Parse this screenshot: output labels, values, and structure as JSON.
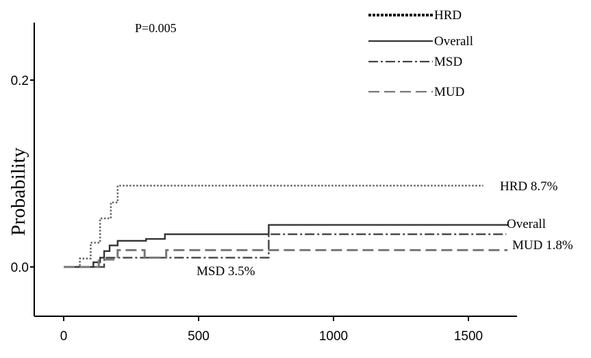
{
  "chart_data": {
    "type": "line",
    "title": "",
    "annotation": "P=0.005",
    "xlabel": "",
    "ylabel": "Probability",
    "xlim": [
      -25,
      1720
    ],
    "ylim": [
      -0.05,
      0.26
    ],
    "xticks": [
      0,
      500,
      1000,
      1500
    ],
    "yticks": [
      0.0,
      0.2
    ],
    "ytick_labels": [
      "0.0",
      "0.2"
    ],
    "grid": false,
    "legend_position": "top-right",
    "series": [
      {
        "name": "HRD",
        "style": "dotted",
        "color": "#666666",
        "end_label": "HRD 8.7%",
        "points": [
          [
            0,
            0
          ],
          [
            60,
            0
          ],
          [
            60,
            0.009
          ],
          [
            100,
            0.009
          ],
          [
            100,
            0.026
          ],
          [
            135,
            0.026
          ],
          [
            135,
            0.052
          ],
          [
            175,
            0.052
          ],
          [
            175,
            0.069
          ],
          [
            200,
            0.069
          ],
          [
            200,
            0.087
          ],
          [
            1555,
            0.087
          ]
        ]
      },
      {
        "name": "Overall",
        "style": "solid",
        "color": "#333333",
        "end_label": "Overall",
        "points": [
          [
            0,
            0
          ],
          [
            110,
            0
          ],
          [
            110,
            0.005
          ],
          [
            135,
            0.005
          ],
          [
            135,
            0.01
          ],
          [
            150,
            0.01
          ],
          [
            150,
            0.017
          ],
          [
            170,
            0.017
          ],
          [
            170,
            0.023
          ],
          [
            200,
            0.023
          ],
          [
            200,
            0.028
          ],
          [
            305,
            0.028
          ],
          [
            305,
            0.03
          ],
          [
            375,
            0.03
          ],
          [
            375,
            0.035
          ],
          [
            760,
            0.035
          ],
          [
            760,
            0.045
          ],
          [
            1645,
            0.045
          ]
        ]
      },
      {
        "name": "MSD",
        "style": "dash-dot",
        "color": "#444444",
        "end_label": "MSD  3.5%",
        "points": [
          [
            0,
            0
          ],
          [
            150,
            0
          ],
          [
            150,
            0.01
          ],
          [
            760,
            0.01
          ],
          [
            760,
            0.035
          ],
          [
            1640,
            0.035
          ]
        ]
      },
      {
        "name": "MUD",
        "style": "dashed",
        "color": "#777777",
        "end_label": "MUD  1.8%",
        "points": [
          [
            0,
            0
          ],
          [
            130,
            0
          ],
          [
            130,
            0.008
          ],
          [
            200,
            0.008
          ],
          [
            200,
            0.018
          ],
          [
            300,
            0.018
          ],
          [
            300,
            0.01
          ],
          [
            380,
            0.01
          ],
          [
            380,
            0.018
          ],
          [
            1645,
            0.018
          ]
        ]
      }
    ]
  }
}
